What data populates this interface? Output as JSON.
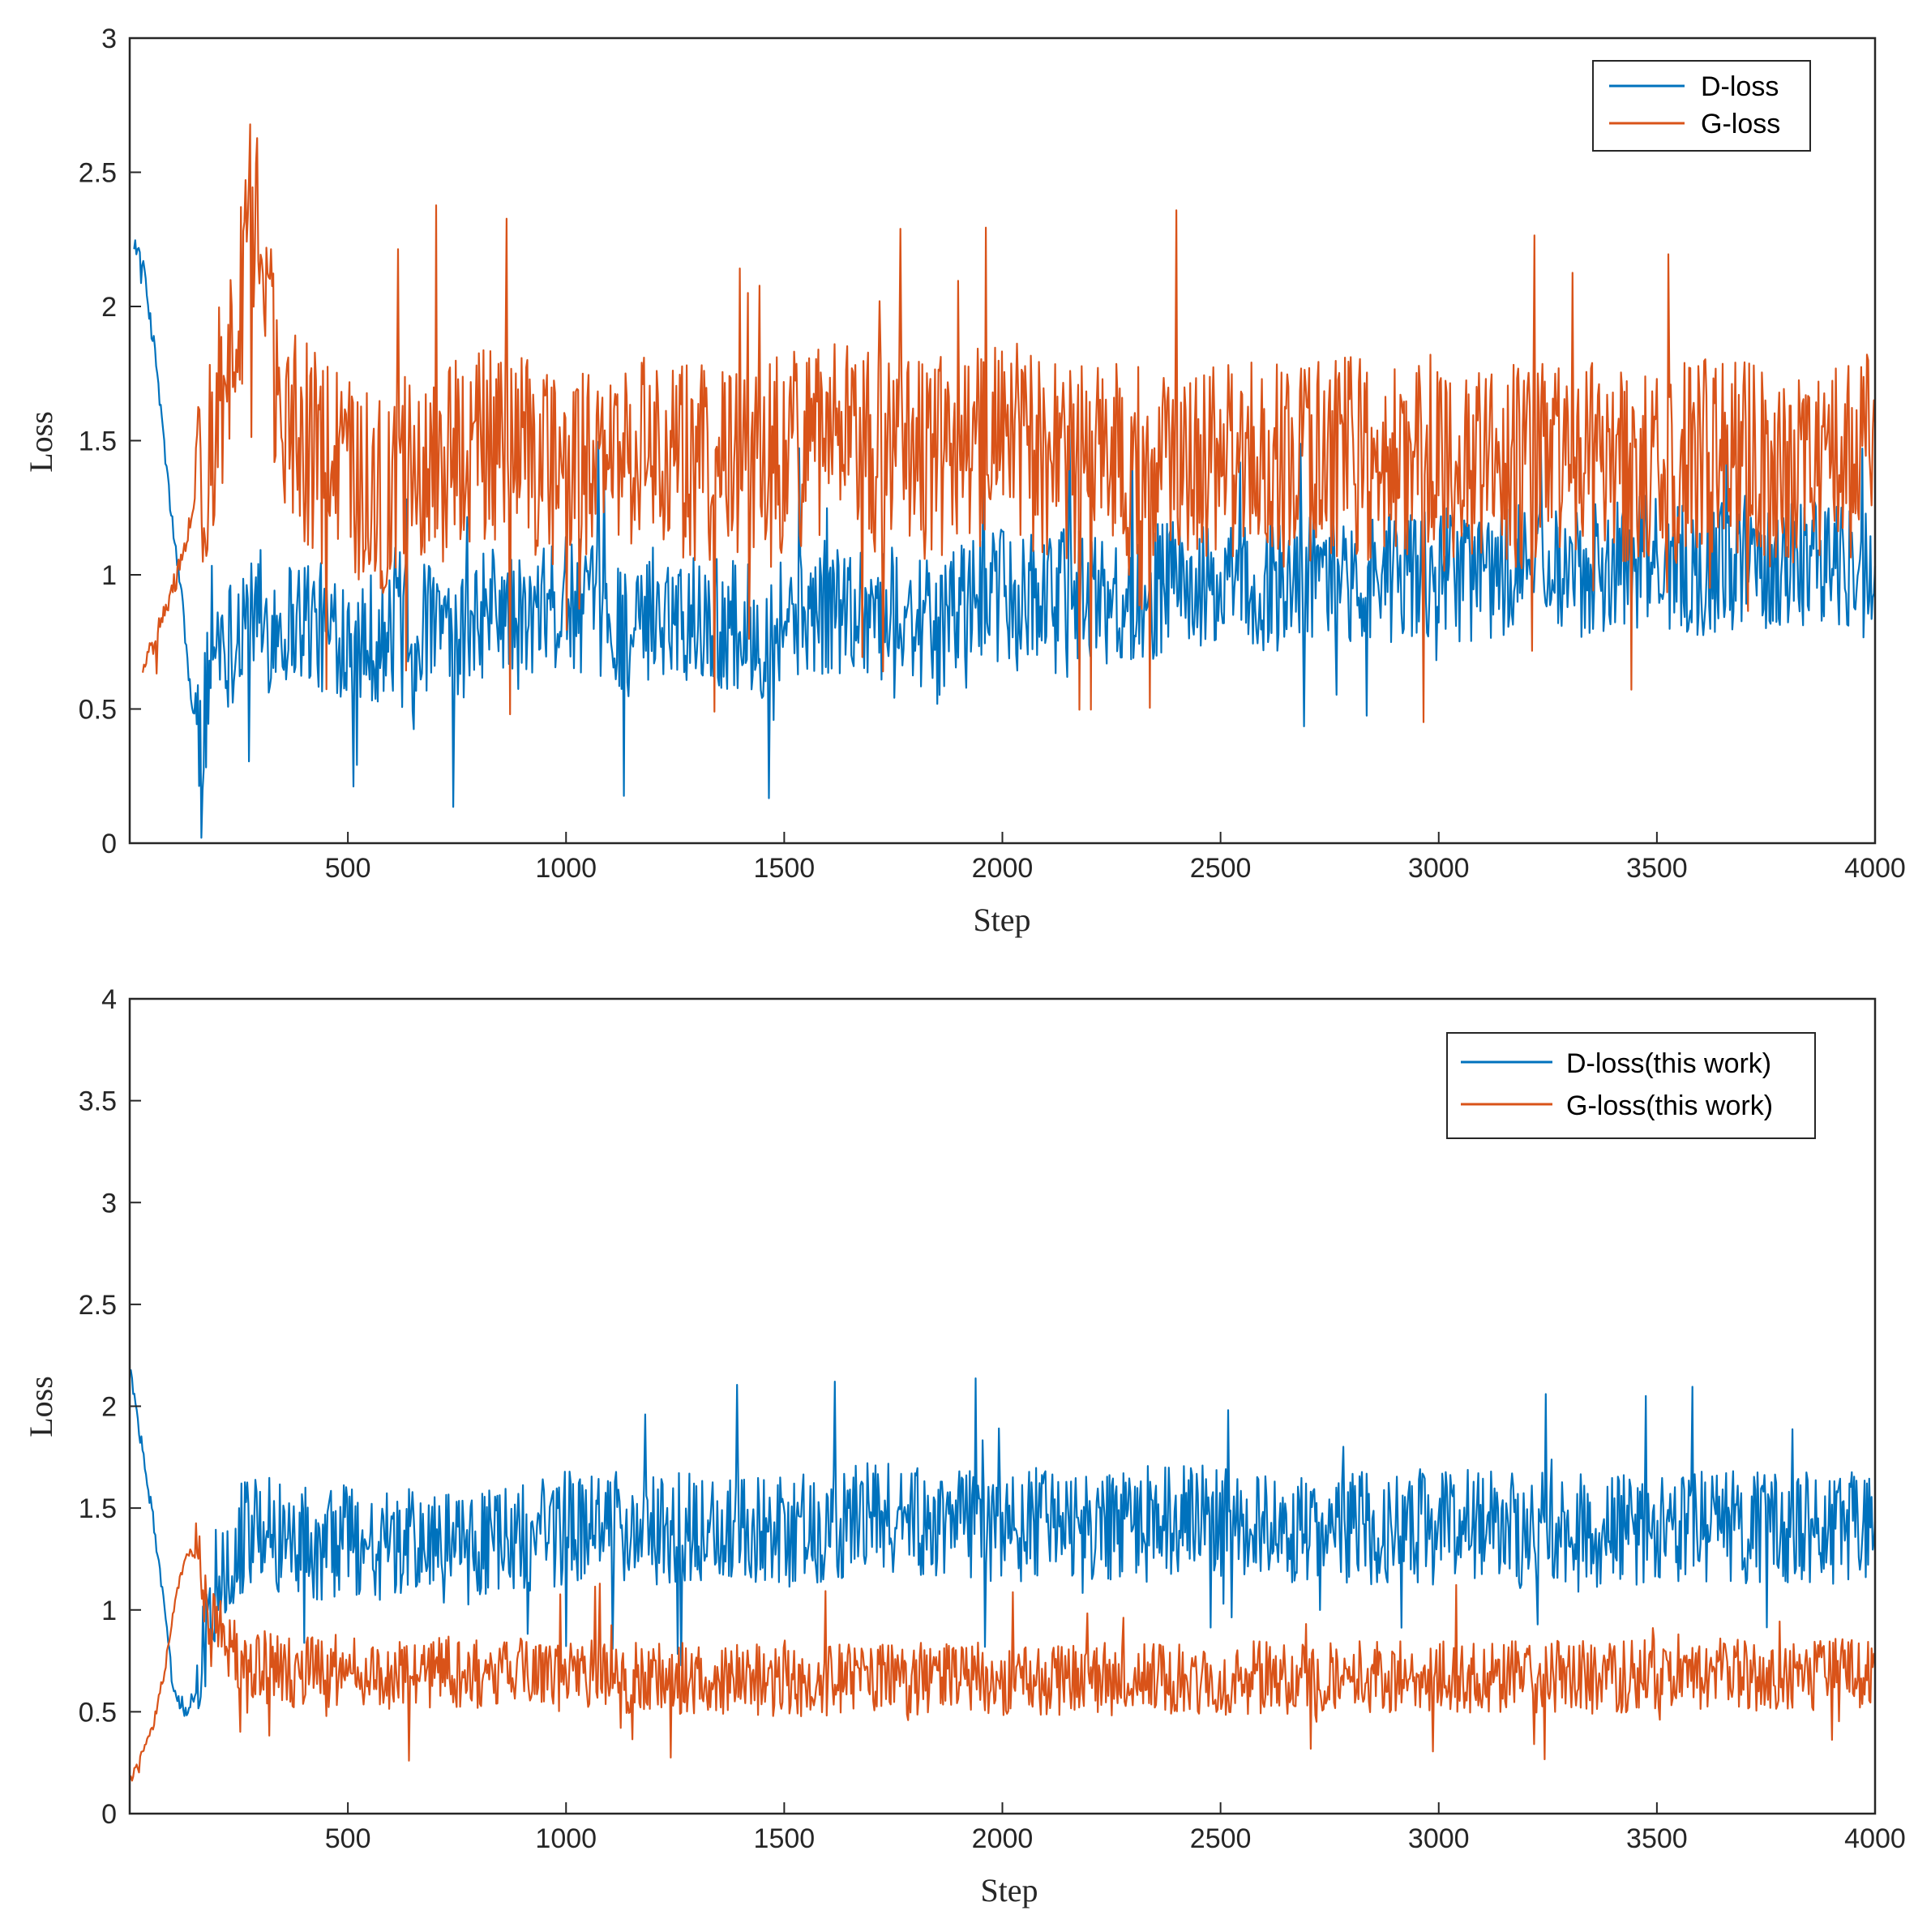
{
  "chart_data": [
    {
      "type": "line",
      "xlabel": "Step",
      "ylabel": "Loss",
      "xlim": [
        0,
        4000
      ],
      "ylim": [
        0,
        3
      ],
      "xticks": [
        500,
        1000,
        1500,
        2000,
        2500,
        3000,
        3500,
        4000
      ],
      "yticks": [
        0,
        0.5,
        1,
        1.5,
        2,
        2.5,
        3
      ],
      "xtick_labels": [
        "500",
        "1000",
        "1500",
        "2000",
        "2500",
        "3000",
        "3500",
        "4000"
      ],
      "ytick_labels": [
        "0",
        "0.5",
        "1",
        "1.5",
        "2",
        "2.5",
        "3"
      ],
      "legend_position": "top-right",
      "grid": false,
      "series": [
        {
          "name": "D-loss",
          "color": "#0072BD",
          "x": [
            10,
            30,
            60,
            90,
            120,
            140,
            160,
            180,
            200,
            230,
            260,
            300,
            350,
            400,
            450,
            500,
            600,
            620,
            650,
            700,
            750,
            800,
            850,
            900,
            950,
            1000,
            1100,
            1170,
            1200,
            1300,
            1400,
            1450,
            1500,
            1600,
            1700,
            1800,
            1860,
            1900,
            2000,
            2050,
            2100,
            2200,
            2300,
            2400,
            2500,
            2550,
            2600,
            2700,
            2800,
            2900,
            3000,
            3100,
            3200,
            3300,
            3400,
            3500,
            3600,
            3700,
            3800,
            3900,
            4000
          ],
          "values": [
            2.25,
            2.15,
            1.8,
            1.3,
            0.9,
            0.55,
            0.35,
            0.6,
            0.8,
            0.75,
            0.85,
            0.8,
            0.82,
            0.85,
            0.78,
            0.8,
            0.75,
            1.0,
            0.78,
            0.82,
            0.7,
            0.85,
            0.88,
            0.8,
            0.85,
            0.9,
            0.85,
            0.75,
            0.88,
            0.85,
            0.8,
            0.78,
            0.85,
            0.88,
            0.88,
            0.85,
            0.75,
            0.9,
            0.92,
            0.88,
            0.95,
            0.92,
            0.9,
            0.98,
            0.92,
            0.95,
            0.95,
            0.98,
            1.0,
            0.98,
            1.0,
            1.0,
            1.02,
            1.0,
            1.05,
            1.05,
            1.02,
            1.05,
            1.05,
            1.05,
            1.0
          ],
          "noise_amplitude": 0.25
        },
        {
          "name": "G-loss",
          "color": "#D95319",
          "x": [
            30,
            60,
            80,
            100,
            120,
            140,
            160,
            180,
            200,
            230,
            260,
            280,
            300,
            320,
            350,
            400,
            450,
            500,
            550,
            600,
            650,
            700,
            800,
            900,
            1000,
            1100,
            1200,
            1300,
            1400,
            1500,
            1600,
            1700,
            1800,
            1900,
            2000,
            2100,
            2200,
            2300,
            2400,
            2500,
            2600,
            2700,
            2800,
            2900,
            3000,
            3100,
            3200,
            3300,
            3400,
            3500,
            3600,
            3700,
            3800,
            3900,
            4000
          ],
          "values": [
            0.62,
            0.75,
            0.85,
            0.95,
            1.05,
            1.2,
            1.35,
            1.45,
            1.6,
            1.85,
            2.1,
            2.35,
            2.3,
            1.9,
            1.6,
            1.5,
            1.4,
            1.35,
            1.3,
            1.3,
            1.45,
            1.4,
            1.5,
            1.45,
            1.4,
            1.45,
            1.45,
            1.4,
            1.42,
            1.45,
            1.5,
            1.45,
            1.42,
            1.45,
            1.5,
            1.45,
            1.42,
            1.45,
            1.45,
            1.45,
            1.4,
            1.42,
            1.45,
            1.4,
            1.45,
            1.42,
            1.4,
            1.45,
            1.42,
            1.4,
            1.45,
            1.42,
            1.4,
            1.42,
            1.45
          ],
          "noise_amplitude": 0.38
        }
      ]
    },
    {
      "type": "line",
      "xlabel": "Step",
      "ylabel": "Loss",
      "xlim": [
        0,
        4000
      ],
      "ylim": [
        0,
        4
      ],
      "xticks": [
        500,
        1000,
        1500,
        2000,
        2500,
        3000,
        3500,
        4000
      ],
      "yticks": [
        0,
        0.5,
        1,
        1.5,
        2,
        2.5,
        3,
        3.5,
        4
      ],
      "xtick_labels": [
        "500",
        "1000",
        "1500",
        "2000",
        "2500",
        "3000",
        "3500",
        "4000"
      ],
      "ytick_labels": [
        "0",
        "0.5",
        "1",
        "1.5",
        "2",
        "2.5",
        "3",
        "3.5",
        "4"
      ],
      "legend_position": "top-right",
      "grid": false,
      "series": [
        {
          "name": "D-loss(this work)",
          "color": "#0072BD",
          "x": [
            0,
            20,
            50,
            80,
            100,
            130,
            150,
            180,
            200,
            250,
            300,
            350,
            400,
            450,
            500,
            600,
            700,
            800,
            900,
            1000,
            1100,
            1200,
            1300,
            1400,
            1500,
            1600,
            1700,
            1800,
            1900,
            2000,
            2100,
            2200,
            2300,
            2400,
            2500,
            2600,
            2700,
            2800,
            2900,
            3000,
            3100,
            3200,
            3300,
            3400,
            3500,
            3600,
            3700,
            3800,
            3900,
            4000
          ],
          "values": [
            2.2,
            1.9,
            1.5,
            1.0,
            0.6,
            0.5,
            0.6,
            0.9,
            1.2,
            1.35,
            1.4,
            1.35,
            1.35,
            1.3,
            1.35,
            1.3,
            1.35,
            1.3,
            1.35,
            1.4,
            1.4,
            1.4,
            1.4,
            1.4,
            1.38,
            1.42,
            1.45,
            1.45,
            1.42,
            1.42,
            1.42,
            1.4,
            1.42,
            1.45,
            1.42,
            1.42,
            1.4,
            1.4,
            1.4,
            1.42,
            1.42,
            1.4,
            1.4,
            1.38,
            1.4,
            1.42,
            1.4,
            1.4,
            1.4,
            1.4
          ],
          "noise_amplitude": 0.28
        },
        {
          "name": "G-loss(this work)",
          "color": "#D95319",
          "x": [
            0,
            20,
            50,
            80,
            100,
            120,
            140,
            160,
            180,
            200,
            230,
            260,
            300,
            350,
            400,
            500,
            600,
            700,
            800,
            900,
            1000,
            1100,
            1200,
            1300,
            1400,
            1500,
            1600,
            1700,
            1800,
            1900,
            2000,
            2100,
            2200,
            2300,
            2400,
            2500,
            2600,
            2700,
            2800,
            2900,
            3000,
            3100,
            3200,
            3300,
            3400,
            3500,
            3600,
            3700,
            3800,
            3900,
            4000
          ],
          "values": [
            0.15,
            0.25,
            0.4,
            0.7,
            1.0,
            1.2,
            1.3,
            1.25,
            1.0,
            0.9,
            0.8,
            0.75,
            0.72,
            0.7,
            0.7,
            0.7,
            0.68,
            0.7,
            0.68,
            0.68,
            0.68,
            0.68,
            0.66,
            0.66,
            0.66,
            0.65,
            0.66,
            0.66,
            0.66,
            0.66,
            0.66,
            0.66,
            0.66,
            0.66,
            0.66,
            0.66,
            0.67,
            0.66,
            0.67,
            0.67,
            0.67,
            0.67,
            0.67,
            0.67,
            0.67,
            0.68,
            0.68,
            0.68,
            0.68,
            0.68,
            0.68
          ],
          "noise_amplitude": 0.18
        }
      ]
    }
  ]
}
